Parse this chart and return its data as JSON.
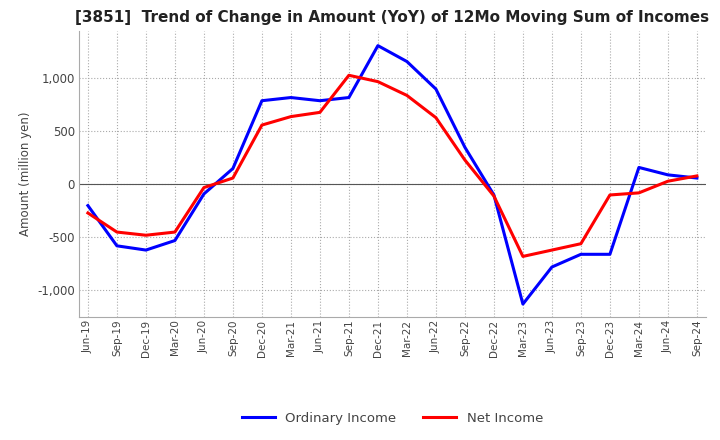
{
  "title": "[3851]  Trend of Change in Amount (YoY) of 12Mo Moving Sum of Incomes",
  "ylabel": "Amount (million yen)",
  "background_color": "#ffffff",
  "grid_color": "#aaaaaa",
  "xlabels": [
    "Jun-19",
    "Sep-19",
    "Dec-19",
    "Mar-20",
    "Jun-20",
    "Sep-20",
    "Dec-20",
    "Mar-21",
    "Jun-21",
    "Sep-21",
    "Dec-21",
    "Mar-22",
    "Jun-22",
    "Sep-22",
    "Dec-22",
    "Mar-23",
    "Jun-23",
    "Sep-23",
    "Dec-23",
    "Mar-24",
    "Jun-24",
    "Sep-24"
  ],
  "ordinary_income": [
    -200,
    -580,
    -620,
    -530,
    -90,
    150,
    790,
    820,
    790,
    820,
    1310,
    1160,
    900,
    350,
    -100,
    -1130,
    -780,
    -660,
    -660,
    160,
    90,
    60
  ],
  "net_income": [
    -270,
    -450,
    -480,
    -450,
    -30,
    60,
    560,
    640,
    680,
    1030,
    970,
    840,
    630,
    230,
    -110,
    -680,
    -620,
    -560,
    -100,
    -80,
    30,
    80
  ],
  "ordinary_color": "#0000ff",
  "net_color": "#ff0000",
  "ylim": [
    -1250,
    1450
  ],
  "yticks": [
    -1000,
    -500,
    0,
    500,
    1000
  ],
  "legend_labels": [
    "Ordinary Income",
    "Net Income"
  ],
  "title_fontsize": 11,
  "line_width": 2.2
}
